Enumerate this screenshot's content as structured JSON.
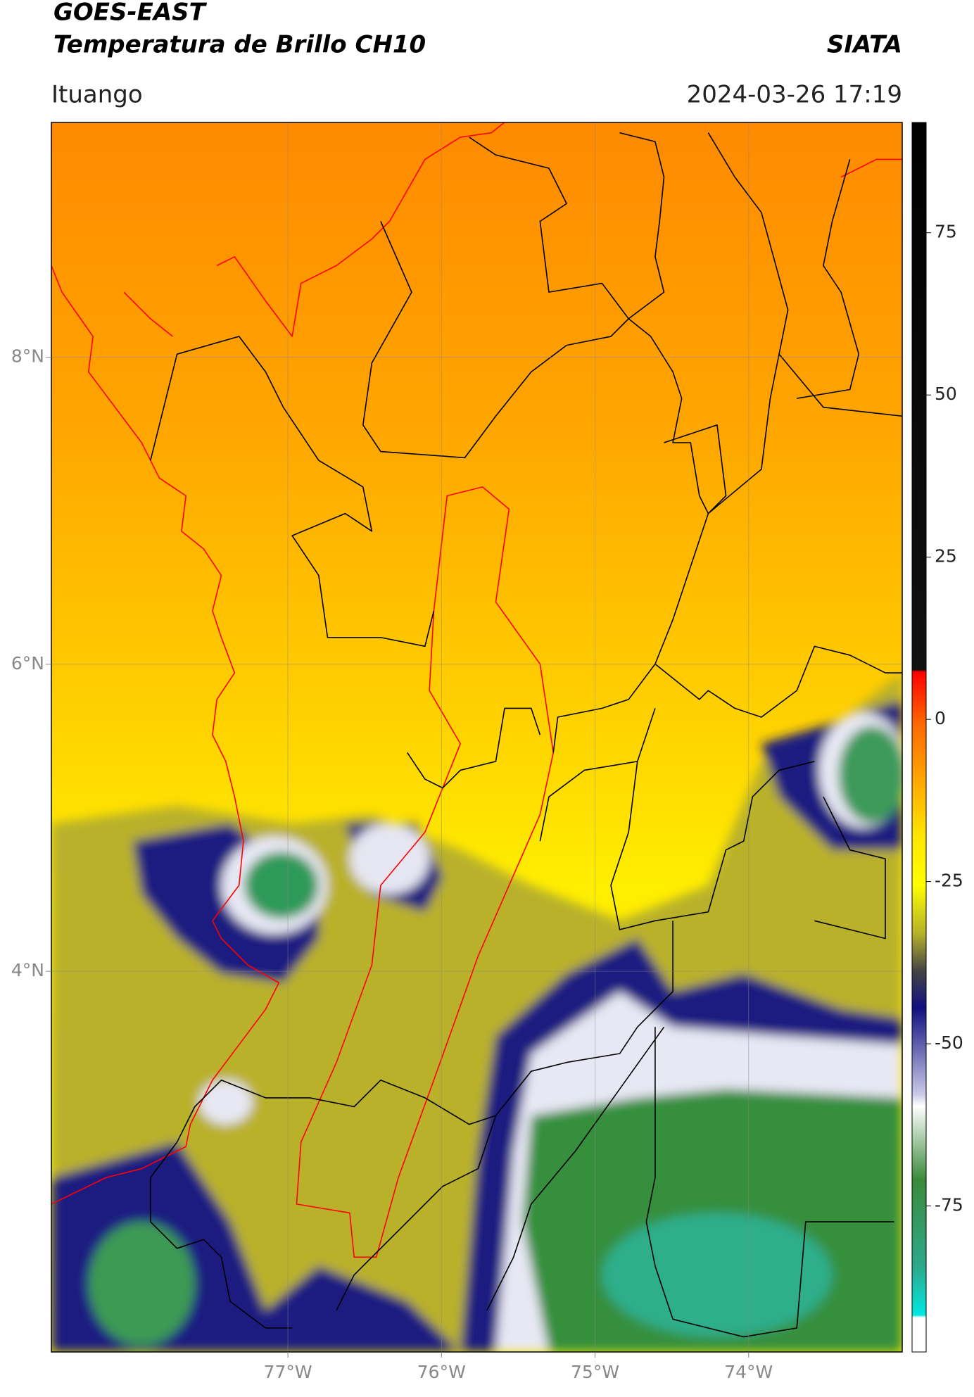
{
  "header": {
    "title": "GOES-EAST",
    "subtitle": "Temperatura de Brillo CH10",
    "source": "SIATA",
    "location": "Ituango",
    "datetime": "2024-03-26 17:19"
  },
  "map": {
    "xlim": [
      -78.54,
      -73.0
    ],
    "ylim": [
      1.52,
      9.53
    ],
    "xticks": [
      {
        "value": -77,
        "label": "77°W"
      },
      {
        "value": -76,
        "label": "76°W"
      },
      {
        "value": -75,
        "label": "75°W"
      },
      {
        "value": -74,
        "label": "74°W"
      }
    ],
    "yticks": [
      {
        "value": 8,
        "label": "8°N"
      },
      {
        "value": 6,
        "label": "6°N"
      },
      {
        "value": 4,
        "label": "4°N"
      }
    ],
    "grid": true
  },
  "colorbar": {
    "lim": [
      -97.5,
      92
    ],
    "ticks": [
      75,
      50,
      25,
      0,
      -25,
      -50,
      -75
    ]
  }
}
